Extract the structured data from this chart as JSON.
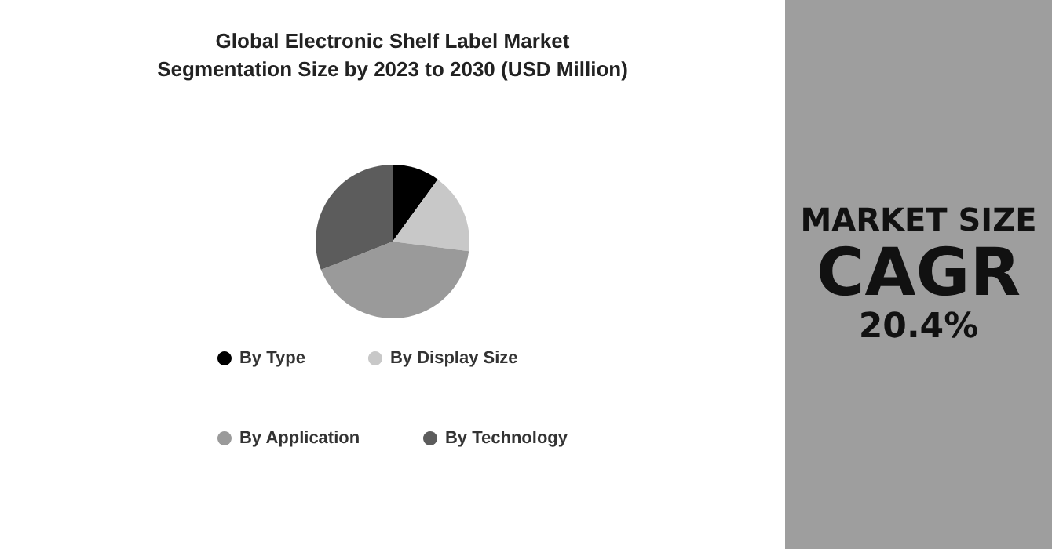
{
  "chart_data": [
    {
      "type": "pie",
      "title": "Global Electronic Shelf Label Market\nSegmentation Size by 2023 to 2030 (USD Million)",
      "categories": [
        "By Type",
        "By Display Size",
        "By Application",
        "By Technology"
      ],
      "values": [
        10,
        17,
        42,
        31
      ],
      "colors": [
        "#000000",
        "#c8c8c8",
        "#9a9a9a",
        "#5c5c5c"
      ],
      "legend": "bottom"
    },
    {
      "type": "other",
      "title": "MARKET SIZE",
      "subtitle": "CAGR",
      "annotations": [
        "20.4%"
      ]
    }
  ]
}
